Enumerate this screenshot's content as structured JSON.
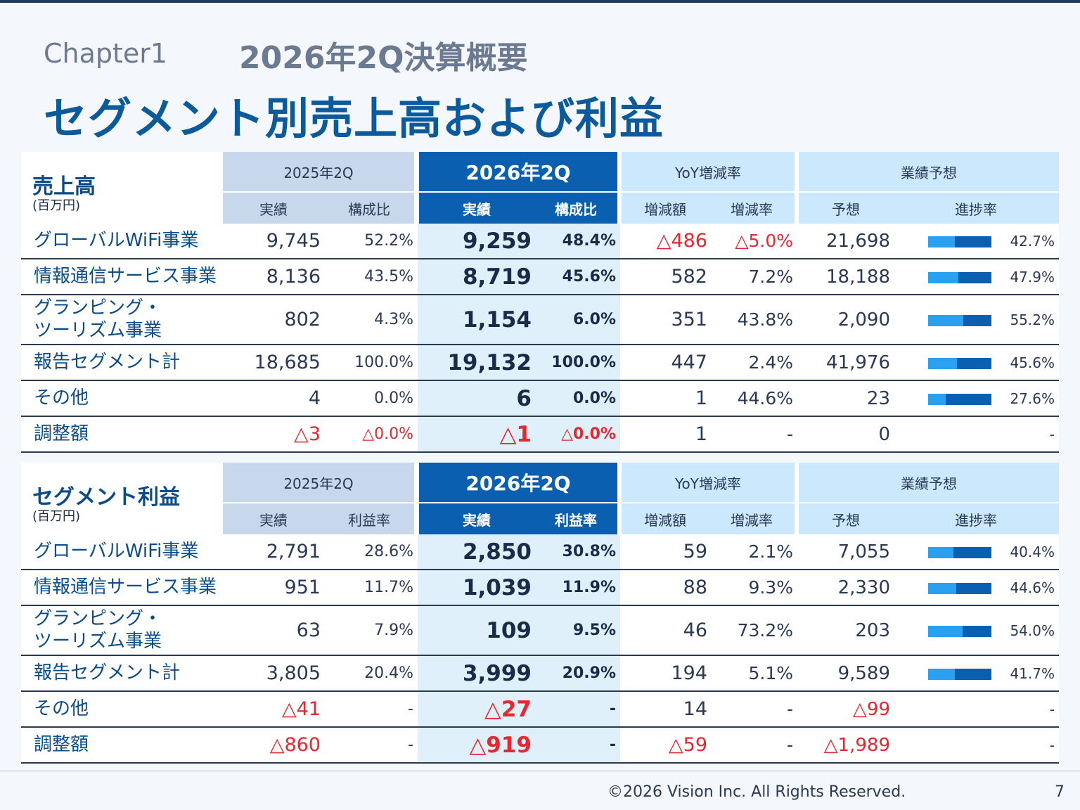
{
  "header": {
    "chapter": "Chapter1",
    "subtitle": "2026年2Q決算概要",
    "title": "セグメント別売上高および利益"
  },
  "sales": {
    "title": "売上高",
    "unit": "(百万円)",
    "groups": {
      "p25": "2025年2Q",
      "p26": "2026年2Q",
      "yoy": "YoY増減率",
      "fc": "業績予想"
    },
    "sub": {
      "v25": "実績",
      "r25": "構成比",
      "v26": "実績",
      "r26": "構成比",
      "vy": "増減額",
      "ry": "増減率",
      "vf": "予想",
      "pc": "進捗率"
    },
    "rows": [
      {
        "label": "グローバルWiFi事業",
        "v25": "9,745",
        "r25": "52.2%",
        "v26": "9,259",
        "r26": "48.4%",
        "vy": "△486",
        "ry": "△5.0%",
        "vf": "21,698",
        "progress": 0.427,
        "pc": "42.7%"
      },
      {
        "label": "情報通信サービス事業",
        "v25": "8,136",
        "r25": "43.5%",
        "v26": "8,719",
        "r26": "45.6%",
        "vy": "582",
        "ry": "7.2%",
        "vf": "18,188",
        "progress": 0.479,
        "pc": "47.9%"
      },
      {
        "label": "グランピング・\nツーリズム事業",
        "v25": "802",
        "r25": "4.3%",
        "v26": "1,154",
        "r26": "6.0%",
        "vy": "351",
        "ry": "43.8%",
        "vf": "2,090",
        "progress": 0.552,
        "pc": "55.2%"
      },
      {
        "label": "報告セグメント計",
        "v25": "18,685",
        "r25": "100.0%",
        "v26": "19,132",
        "r26": "100.0%",
        "vy": "447",
        "ry": "2.4%",
        "vf": "41,976",
        "progress": 0.456,
        "pc": "45.6%"
      },
      {
        "label": "その他",
        "v25": "4",
        "r25": "0.0%",
        "v26": "6",
        "r26": "0.0%",
        "vy": "1",
        "ry": "44.6%",
        "vf": "23",
        "progress": 0.276,
        "pc": "27.6%"
      },
      {
        "label": "調整額",
        "v25": "△3",
        "r25": "△0.0%",
        "v26": "△1",
        "r26": "△0.0%",
        "vy": "1",
        "ry": "-",
        "vf": "0",
        "progress": null,
        "pc": "-"
      }
    ]
  },
  "profit": {
    "title": "セグメント利益",
    "unit": "(百万円)",
    "groups": {
      "p25": "2025年2Q",
      "p26": "2026年2Q",
      "yoy": "YoY増減率",
      "fc": "業績予想"
    },
    "sub": {
      "v25": "実績",
      "r25": "利益率",
      "v26": "実績",
      "r26": "利益率",
      "vy": "増減額",
      "ry": "増減率",
      "vf": "予想",
      "pc": "進捗率"
    },
    "rows": [
      {
        "label": "グローバルWiFi事業",
        "v25": "2,791",
        "r25": "28.6%",
        "v26": "2,850",
        "r26": "30.8%",
        "vy": "59",
        "ry": "2.1%",
        "vf": "7,055",
        "progress": 0.404,
        "pc": "40.4%"
      },
      {
        "label": "情報通信サービス事業",
        "v25": "951",
        "r25": "11.7%",
        "v26": "1,039",
        "r26": "11.9%",
        "vy": "88",
        "ry": "9.3%",
        "vf": "2,330",
        "progress": 0.446,
        "pc": "44.6%"
      },
      {
        "label": "グランピング・\nツーリズム事業",
        "v25": "63",
        "r25": "7.9%",
        "v26": "109",
        "r26": "9.5%",
        "vy": "46",
        "ry": "73.2%",
        "vf": "203",
        "progress": 0.54,
        "pc": "54.0%"
      },
      {
        "label": "報告セグメント計",
        "v25": "3,805",
        "r25": "20.4%",
        "v26": "3,999",
        "r26": "20.9%",
        "vy": "194",
        "ry": "5.1%",
        "vf": "9,589",
        "progress": 0.417,
        "pc": "41.7%"
      },
      {
        "label": "その他",
        "v25": "△41",
        "r25": "-",
        "v26": "△27",
        "r26": "-",
        "vy": "14",
        "ry": "-",
        "vf": "△99",
        "progress": null,
        "pc": "-"
      },
      {
        "label": "調整額",
        "v25": "△860",
        "r25": "-",
        "v26": "△919",
        "r26": "-",
        "vy": "△59",
        "ry": "-",
        "vf": "△1,989",
        "progress": null,
        "pc": "-"
      }
    ]
  },
  "colors": {
    "accent": "#0a5fb0",
    "negative": "#e8262e",
    "title": "#0a5a9c"
  },
  "footer": {
    "copyright": "©2026 Vision Inc. All Rights Reserved.",
    "page": "7"
  }
}
